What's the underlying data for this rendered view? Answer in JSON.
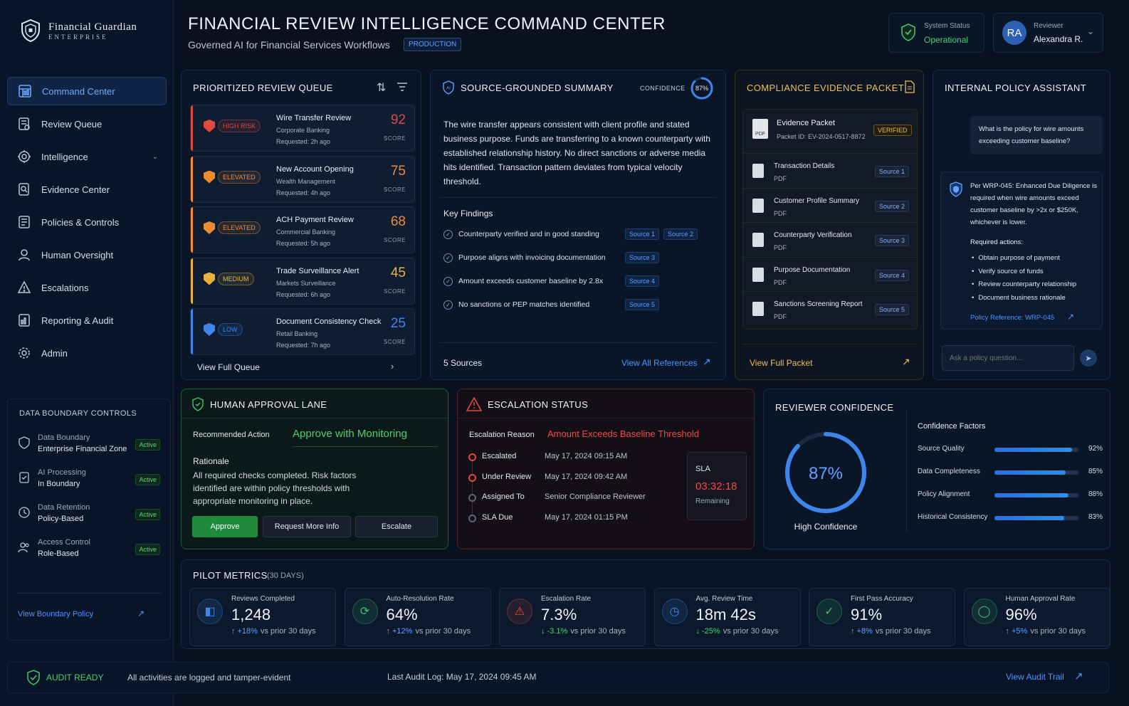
{
  "brand": {
    "name": "Financial Guardian",
    "sub": "ENTERPRISE"
  },
  "nav": [
    {
      "label": "Command Center",
      "icon": "dashboard-icon"
    },
    {
      "label": "Review Queue",
      "icon": "checklist-icon"
    },
    {
      "label": "Intelligence",
      "icon": "brain-icon"
    },
    {
      "label": "Evidence Center",
      "icon": "evidence-icon"
    },
    {
      "label": "Policies & Controls",
      "icon": "policy-icon"
    },
    {
      "label": "Human Oversight",
      "icon": "person-icon"
    },
    {
      "label": "Escalations",
      "icon": "warning-icon"
    },
    {
      "label": "Reporting & Audit",
      "icon": "report-icon"
    },
    {
      "label": "Admin",
      "icon": "gear-icon"
    }
  ],
  "boundary": {
    "title": "DATA BOUNDARY CONTROLS",
    "rows": [
      {
        "label": "Data Boundary",
        "value": "Enterprise Financial Zone",
        "status": "Active"
      },
      {
        "label": "AI Processing",
        "value": "In Boundary",
        "status": "Active"
      },
      {
        "label": "Data Retention",
        "value": "Policy-Based",
        "status": "Active"
      },
      {
        "label": "Access Control",
        "value": "Role-Based",
        "status": "Active"
      }
    ],
    "link": "View Boundary Policy"
  },
  "header": {
    "title": "FINANCIAL REVIEW INTELLIGENCE COMMAND CENTER",
    "subtitle": "Governed AI for Financial Services Workflows",
    "env": "PRODUCTION",
    "status_label": "System Status",
    "status_value": "Operational",
    "reviewer_initials": "RA",
    "reviewer_label": "Reviewer",
    "reviewer_name": "Alexandra R."
  },
  "queue": {
    "title": "PRIORITIZED REVIEW QUEUE",
    "items": [
      {
        "risk": "HIGH RISK",
        "title": "Wire Transfer Review",
        "dept": "Corporate Banking",
        "req": "Requested: 2h ago",
        "score": "92",
        "color": "#e0493e"
      },
      {
        "risk": "ELEVATED",
        "title": "New Account Opening",
        "dept": "Wealth Management",
        "req": "Requested: 4h ago",
        "score": "75",
        "color": "#f08a2e"
      },
      {
        "risk": "ELEVATED",
        "title": "ACH Payment Review",
        "dept": "Commercial Banking",
        "req": "Requested: 5h ago",
        "score": "68",
        "color": "#f08a2e"
      },
      {
        "risk": "MEDIUM",
        "title": "Trade Surveillance Alert",
        "dept": "Markets Surveillance",
        "req": "Requested: 6h ago",
        "score": "45",
        "color": "#e8b23a"
      },
      {
        "risk": "LOW",
        "title": "Document Consistency Check",
        "dept": "Retail Banking",
        "req": "Requested: 7h ago",
        "score": "25",
        "color": "#3f86ec"
      }
    ],
    "score_label": "SCORE",
    "view_full": "View Full Queue"
  },
  "summary": {
    "title": "SOURCE-GROUNDED SUMMARY",
    "confidence_label": "CONFIDENCE",
    "confidence": "87%",
    "confidence_value": 0.87,
    "text": "The wire transfer appears consistent with client profile and stated business purpose. Funds are transferring to a known counterparty with established relationship history. No direct sanctions or adverse media hits identified. Transaction pattern deviates from typical velocity threshold.",
    "findings_title": "Key Findings",
    "findings": [
      {
        "text": "Counterparty verified and in good standing",
        "sources": [
          "Source 1",
          "Source 2"
        ]
      },
      {
        "text": "Purpose aligns with invoicing documentation",
        "sources": [
          "Source 3"
        ]
      },
      {
        "text": "Amount exceeds customer baseline by 2.8x",
        "sources": [
          "Source 4"
        ]
      },
      {
        "text": "No sanctions or PEP matches identified",
        "sources": [
          "Source 5"
        ]
      }
    ],
    "sources_count": "5 Sources",
    "view_refs": "View All References"
  },
  "packet": {
    "title": "COMPLIANCE EVIDENCE PACKET",
    "name": "Evidence Packet",
    "id": "Packet ID: EV-2024-0517-8872",
    "verified": "VERIFIED",
    "pdf": "PDF",
    "docs": [
      {
        "name": "Transaction Details",
        "type": "PDF",
        "src": "Source 1"
      },
      {
        "name": "Customer Profile Summary",
        "type": "PDF",
        "src": "Source 2"
      },
      {
        "name": "Counterparty Verification",
        "type": "PDF",
        "src": "Source 3"
      },
      {
        "name": "Purpose Documentation",
        "type": "PDF",
        "src": "Source 4"
      },
      {
        "name": "Sanctions Screening Report",
        "type": "PDF",
        "src": "Source 5"
      }
    ],
    "view_full": "View Full Packet"
  },
  "assistant": {
    "title": "INTERNAL POLICY ASSISTANT",
    "question": "What is the policy for wire amounts exceeding customer baseline?",
    "answer": "Per WRP-045: Enhanced Due Diligence is required when wire amounts exceed customer baseline by >2x or $250K, whichever is lower.",
    "actions_title": "Required actions:",
    "actions": [
      "Obtain purpose of payment",
      "Verify source of funds",
      "Review counterparty relationship",
      "Document business rationale"
    ],
    "ref": "Policy Reference: WRP-045",
    "placeholder": "Ask a policy question..."
  },
  "approval": {
    "title": "HUMAN APPROVAL LANE",
    "rec_label": "Recommended Action",
    "rec_value": "Approve with Monitoring",
    "rationale_title": "Rationale",
    "rationale": "All required checks completed. Risk factors identified are within policy thresholds with appropriate monitoring in place.",
    "approve": "Approve",
    "more": "Request More Info",
    "escalate": "Escalate"
  },
  "escalation": {
    "title": "ESCALATION STATUS",
    "reason_label": "Escalation Reason",
    "reason": "Amount Exceeds Baseline Threshold",
    "steps": [
      {
        "label": "Escalated",
        "value": "May 17, 2024 09:15 AM"
      },
      {
        "label": "Under Review",
        "value": "May 17, 2024 09:42 AM"
      },
      {
        "label": "Assigned To",
        "value": "Senior Compliance Reviewer"
      },
      {
        "label": "SLA Due",
        "value": "May 17, 2024 01:15 PM"
      }
    ],
    "sla_label": "SLA",
    "sla_time": "03:32:18",
    "sla_remaining": "Remaining"
  },
  "confidence": {
    "title": "REVIEWER CONFIDENCE",
    "value": "87%",
    "value_num": 0.87,
    "label": "High Confidence",
    "factors_title": "Confidence Factors",
    "factors": [
      {
        "label": "Source Quality",
        "value": "92%",
        "num": 0.92
      },
      {
        "label": "Data Completeness",
        "value": "85%",
        "num": 0.85
      },
      {
        "label": "Policy Alignment",
        "value": "88%",
        "num": 0.88
      },
      {
        "label": "Historical Consistency",
        "value": "83%",
        "num": 0.83
      }
    ]
  },
  "metrics": {
    "title": "PILOT METRICS",
    "period": "(30 DAYS)",
    "items": [
      {
        "label": "Reviews Completed",
        "value": "1,248",
        "change": "+18%",
        "suffix": "vs prior 30 days",
        "dir": "up",
        "color": "#3f86ec"
      },
      {
        "label": "Auto-Resolution Rate",
        "value": "64%",
        "change": "+12%",
        "suffix": "vs prior 30 days",
        "dir": "up",
        "color": "#3fbf6a"
      },
      {
        "label": "Escalation Rate",
        "value": "7.3%",
        "change": "-3.1%",
        "suffix": "vs prior 30 days",
        "dir": "down",
        "color": "#e0493e"
      },
      {
        "label": "Avg. Review Time",
        "value": "18m 42s",
        "change": "-25%",
        "suffix": "vs prior 30 days",
        "dir": "down",
        "color": "#3f86ec"
      },
      {
        "label": "First Pass Accuracy",
        "value": "91%",
        "change": "+8%",
        "suffix": "vs prior 30 days",
        "dir": "up",
        "color": "#3fbf6a"
      },
      {
        "label": "Human Approval Rate",
        "value": "96%",
        "change": "+5%",
        "suffix": "vs prior 30 days",
        "dir": "up",
        "color": "#3fbf6a"
      }
    ]
  },
  "footer": {
    "audit": "AUDIT READY",
    "logged": "All activities are logged and tamper-evident",
    "last_log": "Last Audit Log: May 17, 2024 09:45 AM",
    "trail": "View Audit Trail"
  }
}
